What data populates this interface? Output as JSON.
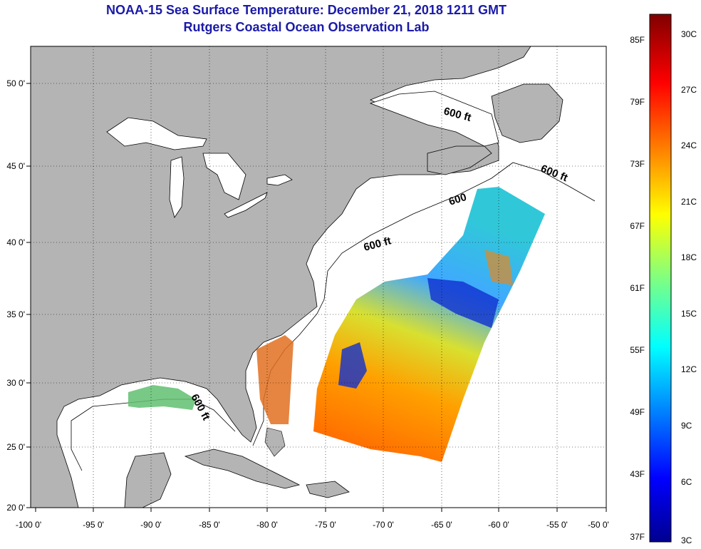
{
  "title": {
    "line1": "NOAA-15 Sea Surface Temperature:  December 21, 2018 1211 GMT",
    "line2": "Rutgers Coastal Ocean Observation Lab"
  },
  "map": {
    "lon_ticks": [
      "-100 0'",
      "-95 0'",
      "-90 0'",
      "-85 0'",
      "-80 0'",
      "-75 0'",
      "-70 0'",
      "-65 0'",
      "-60 0'",
      "-55 0'",
      "-50 0'"
    ],
    "lat_ticks": [
      "50 0'",
      "45 0'",
      "40 0'",
      "35 0'",
      "30 0'",
      "25 0'",
      "20 0'"
    ],
    "contour_labels": [
      "600 ft",
      "600 ft",
      "600",
      "600 ft",
      "600 ft"
    ],
    "land_color": "#b4b4b4",
    "ocean_color": "#ffffff"
  },
  "colorbar": {
    "fahrenheit": [
      "85F",
      "79F",
      "73F",
      "67F",
      "61F",
      "55F",
      "49F",
      "43F",
      "37F"
    ],
    "celsius": [
      "30C",
      "27C",
      "24C",
      "21C",
      "18C",
      "15C",
      "12C",
      "9C",
      "6C",
      "3C"
    ]
  }
}
